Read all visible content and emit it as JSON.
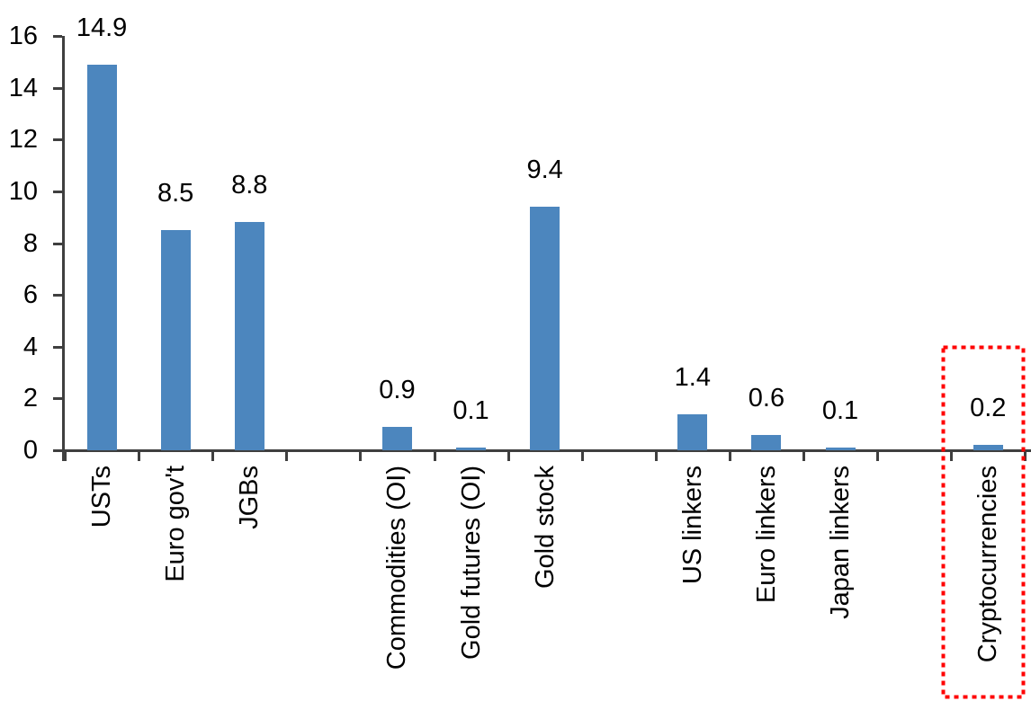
{
  "chart_data": {
    "type": "bar",
    "title": "",
    "xlabel": "",
    "ylabel": "",
    "categories": [
      "USTs",
      "Euro gov't",
      "JGBs",
      "Commodities (OI)",
      "Gold futures (OI)",
      "Gold stock",
      "US linkers",
      "Euro linkers",
      "Japan linkers",
      "Cryptocurrencies"
    ],
    "values": [
      14.9,
      8.5,
      8.8,
      0.9,
      0.1,
      9.4,
      1.4,
      0.6,
      0.1,
      0.2
    ],
    "value_labels": [
      "14.9",
      "8.5",
      "8.8",
      "0.9",
      "0.1",
      "9.4",
      "1.4",
      "0.6",
      "0.1",
      "0.2"
    ],
    "slot_index": [
      0,
      1,
      2,
      4,
      5,
      6,
      8,
      9,
      10,
      12
    ],
    "total_slots": 13,
    "ylim": [
      0,
      16
    ],
    "yticks": [
      "0",
      "2",
      "4",
      "6",
      "8",
      "10",
      "12",
      "14",
      "16"
    ],
    "grid": false,
    "legend": false,
    "category_label_rotation_deg": 90,
    "highlight": {
      "category": "Cryptocurrencies",
      "shape": "dotted-rectangle"
    },
    "colors": {
      "bar": "#4C86BE",
      "axis": "#3F3F3F",
      "text": "#000000",
      "highlight_box": "#FF0000",
      "background": "#FFFFFF"
    }
  }
}
